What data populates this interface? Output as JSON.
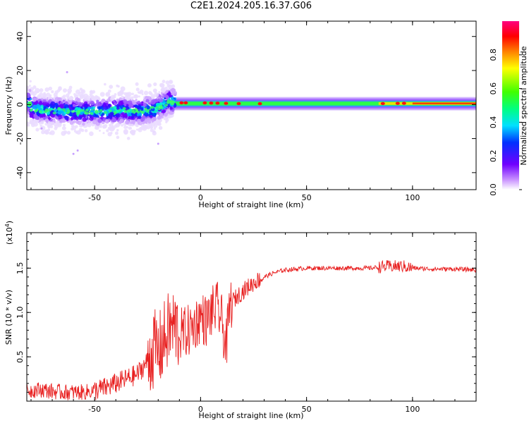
{
  "title": "C2E1.2024.205.16.37.G06",
  "chart_data": [
    {
      "type": "heatmap",
      "xlabel": "Height of straight line (km)",
      "ylabel": "Frequency (Hz)",
      "xlim": [
        -82,
        130
      ],
      "ylim": [
        -50,
        49
      ],
      "xticks": [
        -50,
        0,
        50,
        100
      ],
      "yticks": [
        -40,
        -20,
        0,
        20,
        40
      ],
      "colorbar": {
        "label": "Normalized spectral amplitude",
        "range": [
          0,
          1
        ],
        "ticks": [
          "0.0",
          "0.2",
          "0.4",
          "0.6",
          "0.8"
        ],
        "colors": [
          "#ffffff",
          "#c890ff",
          "#7000ff",
          "#0030ff",
          "#00e0ff",
          "#00ff80",
          "#40ff00",
          "#ffff00",
          "#ff8000",
          "#ff0000",
          "#ff0080"
        ]
      },
      "ridge": [
        {
          "x": -80,
          "f": -2.5
        },
        {
          "x": -70,
          "f": -3.5
        },
        {
          "x": -60,
          "f": -4
        },
        {
          "x": -50,
          "f": -4
        },
        {
          "x": -40,
          "f": -3.5
        },
        {
          "x": -30,
          "f": -4
        },
        {
          "x": -22,
          "f": -3
        },
        {
          "x": -15,
          "f": 2
        },
        {
          "x": -10,
          "f": 1
        },
        {
          "x": 0,
          "f": 1
        },
        {
          "x": 20,
          "f": 0.5
        },
        {
          "x": 50,
          "f": 0.5
        },
        {
          "x": 80,
          "f": 0.5
        },
        {
          "x": 100,
          "f": 0.8
        },
        {
          "x": 130,
          "f": 1
        }
      ]
    },
    {
      "type": "line",
      "xlabel": "Height of straight line (km)",
      "ylabel": "SNR (10 * v/v)",
      "multiplier": "(x10",
      "multiplier_exp": "4",
      "multiplier_close": ")",
      "xlim": [
        -82,
        130
      ],
      "ylim": [
        0,
        1.9
      ],
      "xticks": [
        -50,
        0,
        50,
        100
      ],
      "yticks": [
        "0.5",
        "1.0",
        "1.5"
      ],
      "color": "#e82020",
      "series": [
        {
          "values": [
            [
              -82,
              0.12
            ],
            [
              -75,
              0.13
            ],
            [
              -70,
              0.11
            ],
            [
              -65,
              0.1
            ],
            [
              -60,
              0.1
            ],
            [
              -55,
              0.1
            ],
            [
              -50,
              0.12
            ],
            [
              -45,
              0.15
            ],
            [
              -40,
              0.2
            ],
            [
              -35,
              0.25
            ],
            [
              -30,
              0.3
            ],
            [
              -25,
              0.45
            ],
            [
              -22,
              0.6
            ],
            [
              -20,
              0.55
            ],
            [
              -18,
              0.65
            ],
            [
              -15,
              0.8
            ],
            [
              -12,
              0.85
            ],
            [
              -10,
              0.75
            ],
            [
              -5,
              0.8
            ],
            [
              0,
              0.95
            ],
            [
              3,
              0.9
            ],
            [
              5,
              1.0
            ],
            [
              8,
              1.05
            ],
            [
              10,
              0.9
            ],
            [
              12,
              0.6
            ],
            [
              14,
              1.1
            ],
            [
              18,
              1.2
            ],
            [
              22,
              1.28
            ],
            [
              26,
              1.35
            ],
            [
              30,
              1.4
            ],
            [
              35,
              1.45
            ],
            [
              40,
              1.48
            ],
            [
              50,
              1.5
            ],
            [
              60,
              1.5
            ],
            [
              70,
              1.5
            ],
            [
              80,
              1.5
            ],
            [
              88,
              1.52
            ],
            [
              92,
              1.52
            ],
            [
              96,
              1.52
            ],
            [
              100,
              1.5
            ],
            [
              110,
              1.49
            ],
            [
              120,
              1.49
            ],
            [
              130,
              1.48
            ]
          ]
        }
      ]
    }
  ]
}
